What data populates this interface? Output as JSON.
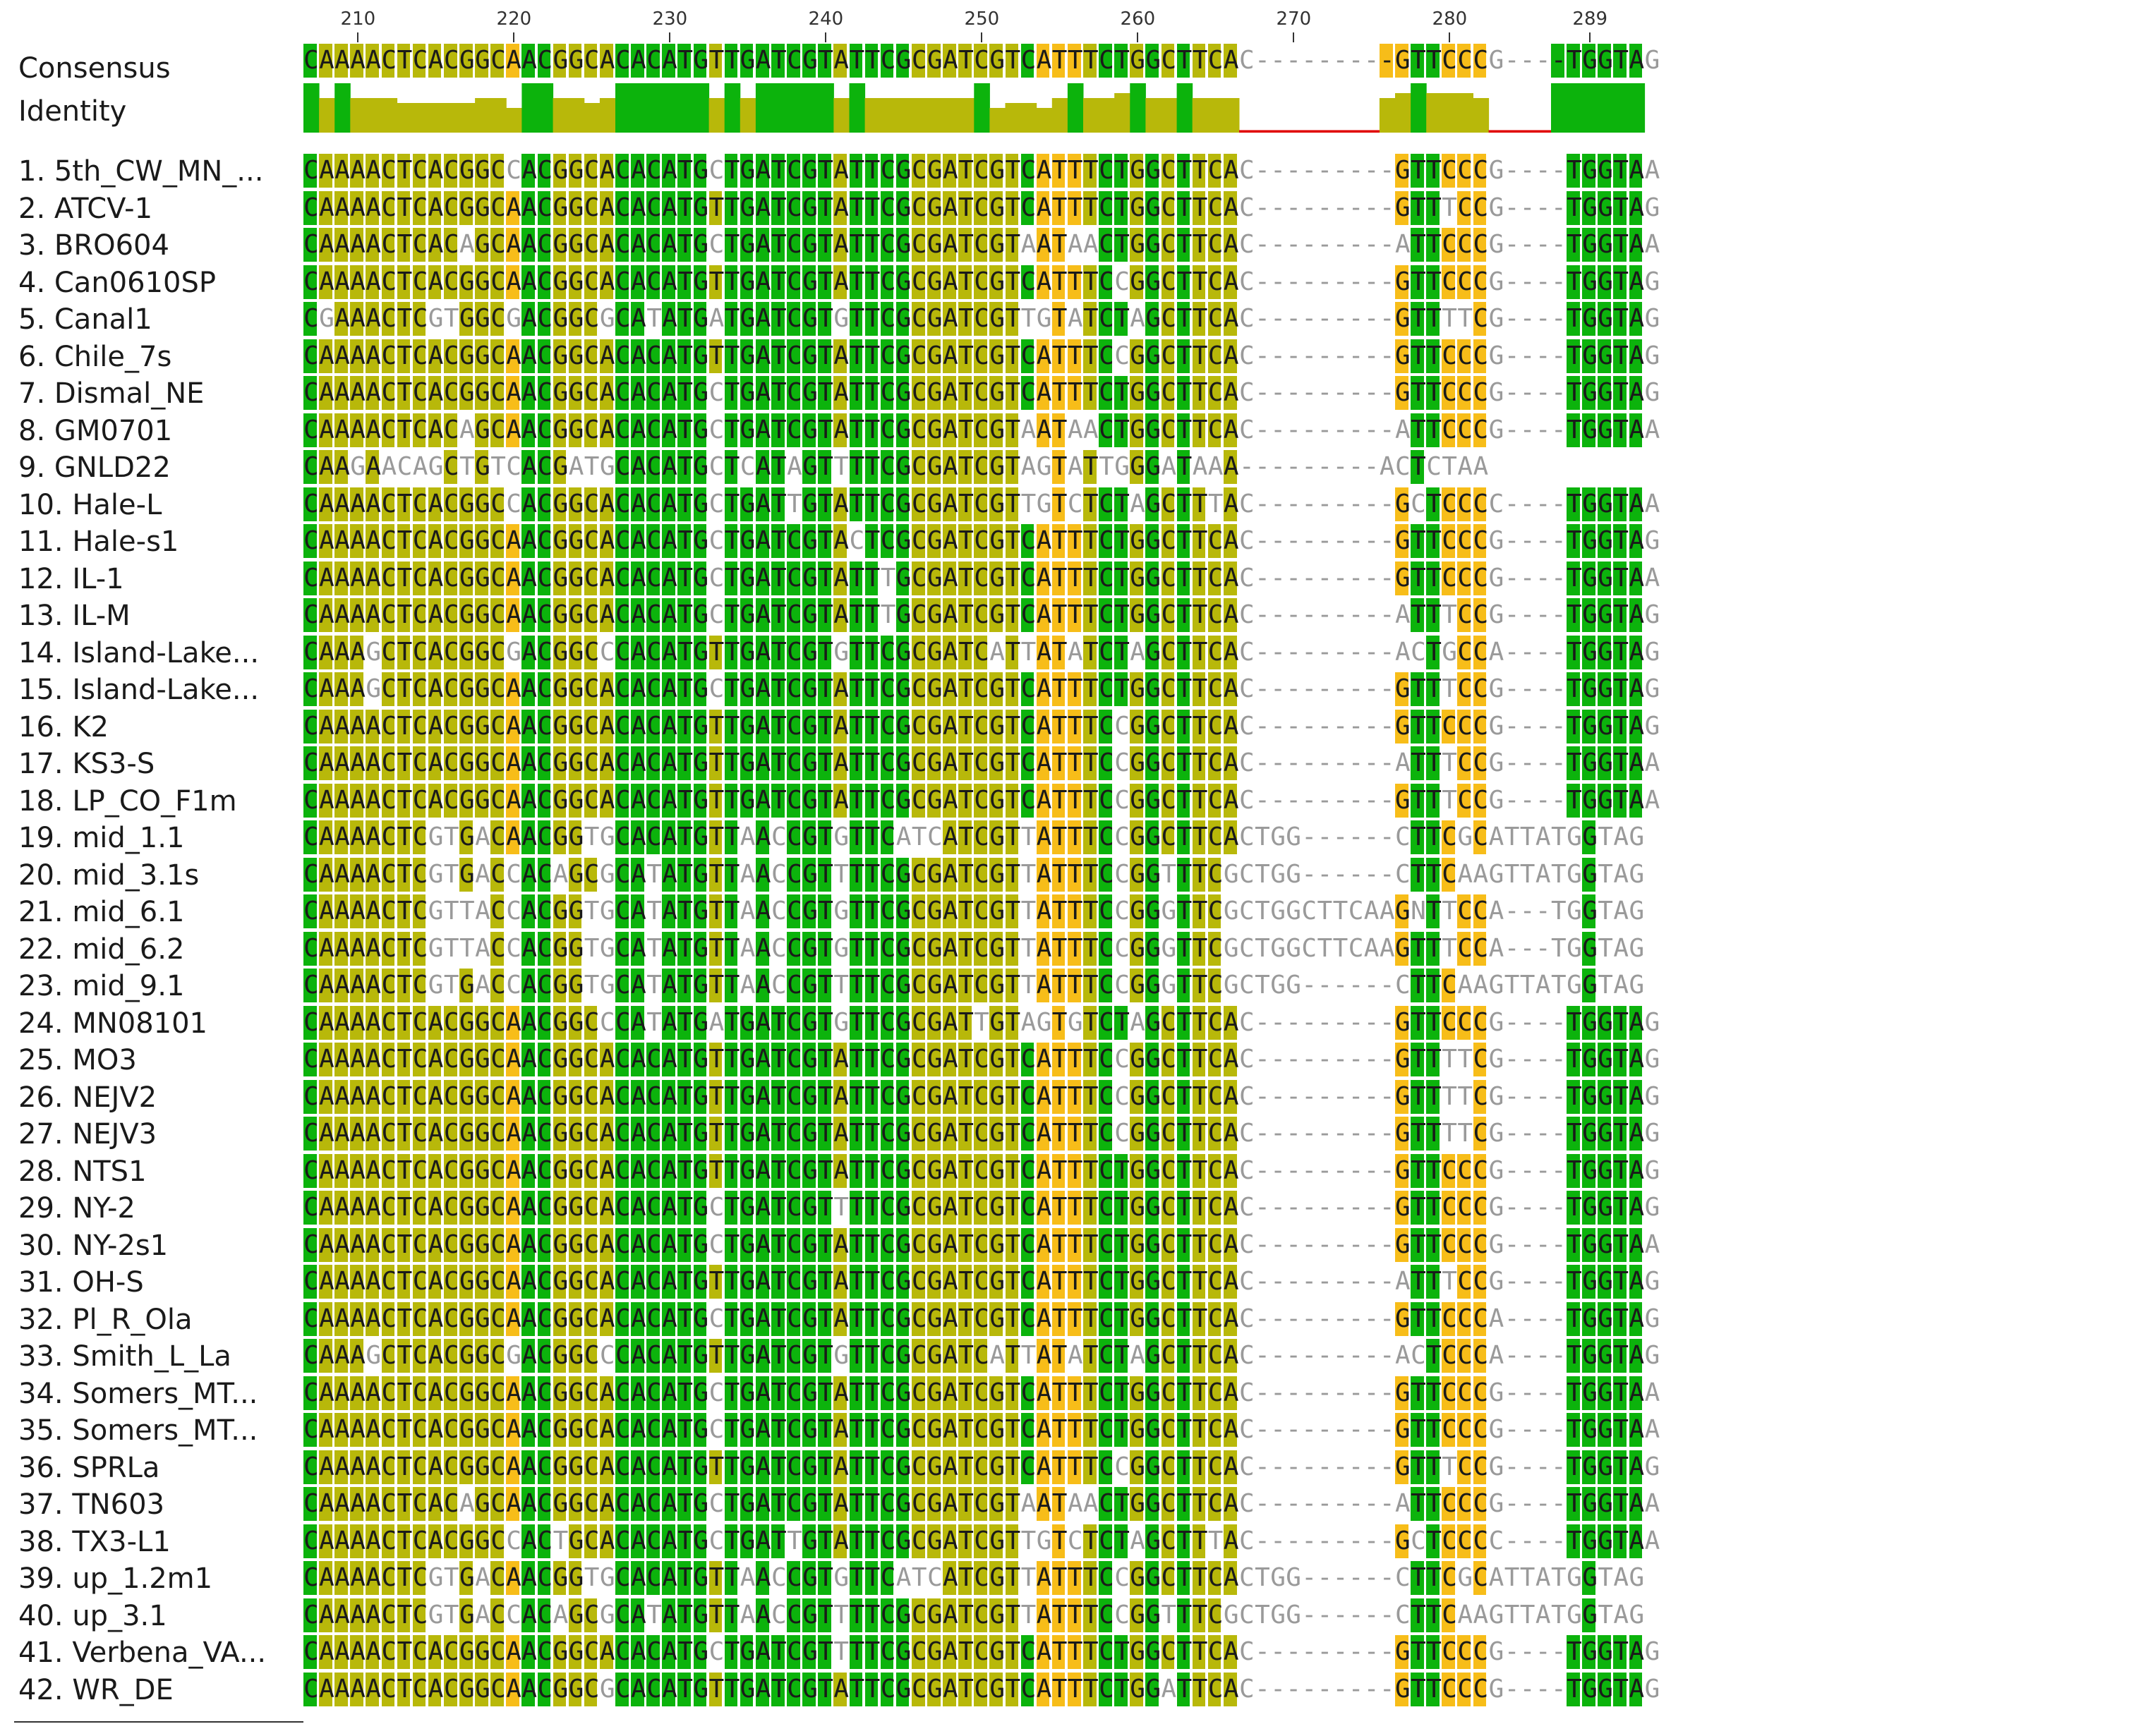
{
  "ruler": {
    "ticks": [
      "210",
      "220",
      "230",
      "240",
      "250",
      "260",
      "270",
      "280",
      "289"
    ],
    "start": 207,
    "end": 289
  },
  "labels": {
    "consensus": "Consensus",
    "identity": "Identity"
  },
  "colors": {
    "full": "#0cb30c",
    "high": "#b8b80a",
    "medium": "#f7bd19",
    "low": "#ffffff",
    "gapline": "#e00000"
  },
  "consensus": "CAAAACTCACGGCAACGGCACACATGTTGATCGTATTCGCGATCGTCATTTCTGGCTTCAC---------GTTCCCG----TGGTAG",
  "consensus_colors": "GYYYYYYYYYYYYOGGYYYYGGGGGGYGGGGGGGYGGGGYYYYYYYGOOOYGGYGYGYYY---------OOGGOOO----GGGGGG",
  "identity_levels": [
    1,
    0.7,
    1,
    0.7,
    0.7,
    0.7,
    0.6,
    0.6,
    0.6,
    0.6,
    0.6,
    0.7,
    0.7,
    0.5,
    1,
    1,
    0.7,
    0.7,
    0.6,
    0.7,
    1,
    1,
    1,
    1,
    1,
    1,
    0.7,
    1,
    0.7,
    1,
    1,
    1,
    1,
    1,
    0.7,
    1,
    0.7,
    0.7,
    0.7,
    0.7,
    0.7,
    0.7,
    0.7,
    1,
    0.5,
    0.6,
    0.6,
    0.5,
    0.7,
    1,
    0.7,
    0.7,
    0.8,
    1,
    0.7,
    0.7,
    1,
    0.7,
    0.7,
    0.7,
    0.05,
    0.05,
    0.05,
    0.05,
    0.05,
    0.05,
    0.05,
    0.05,
    0.05,
    0.7,
    0.8,
    1,
    0.8,
    0.8,
    0.8,
    0.7,
    0.05,
    0.05,
    0.05,
    0.05,
    1,
    1,
    1,
    1,
    1,
    1
  ],
  "sequences": [
    {
      "name": "1. 5th_CW_MN_...",
      "seq": "CAAAACTCACGGCCACGGCACACATGCTGATCGTATTCGCGATCGTCATTTCTGGCTTCAC---------GTTCCCG----TGGTAA"
    },
    {
      "name": "2. ATCV-1",
      "seq": "CAAAACTCACGGCAACGGCACACATGTTGATCGTATTCGCGATCGTCATTTCTGGCTTCAC---------GTTTCCG----TGGTAG"
    },
    {
      "name": "3. BRO604",
      "seq": "CAAAACTCACAGCAACGGCACACATGCTGATCGTATTCGCGATCGTAATAACTGGCTTCAC---------ATTCCCG----TGGTAA"
    },
    {
      "name": "4. Can0610SP",
      "seq": "CAAAACTCACGGCAACGGCACACATGTTGATCGTATTCGCGATCGTCATTTCCGGCTTCAC---------GTTCCCG----TGGTAG"
    },
    {
      "name": "5. Canal1",
      "seq": "CGAAACTCGTGGCGACGGCGCATATGATGATCGTGTTCGCGATCGTTGTATCTAGCTTCAC---------GTTTTCG----TGGTAG"
    },
    {
      "name": "6. Chile_7s",
      "seq": "CAAAACTCACGGCAACGGCACACATGTTGATCGTATTCGCGATCGTCATTTCCGGCTTCAC---------GTTCCCG----TGGTAG"
    },
    {
      "name": "7. Dismal_NE",
      "seq": "CAAAACTCACGGCAACGGCACACATGCTGATCGTATTCGCGATCGTCATTTCTGGCTTCAC---------GTTCCCG----TGGTAG"
    },
    {
      "name": "8. GM0701",
      "seq": "CAAAACTCACAGCAACGGCACACATGCTGATCGTATTCGCGATCGTAATAACTGGCTTCAC---------ATTCCCG----TGGTAA"
    },
    {
      "name": "9. GNLD22",
      "seq": "CAAGAACAGCTGTCACGATGCACATGCTCATAGTTTTCGCGATCGTAGTATTGGGATAAA---------ACTCTAA           "
    },
    {
      "name": "10. Hale-L",
      "seq": "CAAAACTCACGGCCACGGCACACATGCTGATTGTATTCGCGATCGTTGTCTCTAGCTTTAC---------GCTCCCC----TGGTAA"
    },
    {
      "name": "11. Hale-s1",
      "seq": "CAAAACTCACGGCAACGGCACACATGCTGATCGTACTCGCGATCGTCATTTCTGGCTTCAC---------GTTCCCG----TGGTAG"
    },
    {
      "name": "12. IL-1",
      "seq": "CAAAACTCACGGCAACGGCACACATGCTGATCGTATTTGCGATCGTCATTTCTGGCTTCAC---------GTTCCCG----TGGTAA"
    },
    {
      "name": "13. IL-M",
      "seq": "CAAAACTCACGGCAACGGCACACATGCTGATCGTATTTGCGATCGTCATTTCTGGCTTCAC---------ATTTCCG----TGGTAG"
    },
    {
      "name": "14. Island-Lake...",
      "seq": "CAAAGCTCACGGCGACGGCCCACATGTTGATCGTGTTCGCGATCATTATATCTAGCTTCAC---------ACTGCCA----TGGTAG"
    },
    {
      "name": "15. Island-Lake...",
      "seq": "CAAAGCTCACGGCAACGGCACACATGCTGATCGTATTCGCGATCGTCATTTCTGGCTTCAC---------GTTTCCG----TGGTAG"
    },
    {
      "name": "16. K2",
      "seq": "CAAAACTCACGGCAACGGCACACATGTTGATCGTATTCGCGATCGTCATTTCCGGCTTCAC---------GTTCCCG----TGGTAG"
    },
    {
      "name": "17. KS3-S",
      "seq": "CAAAACTCACGGCAACGGCACACATGTTGATCGTATTCGCGATCGTCATTTCCGGCTTCAC---------ATTTCCG----TGGTAA"
    },
    {
      "name": "18. LP_CO_F1m",
      "seq": "CAAAACTCACGGCAACGGCACACATGTTGATCGTATTCGCGATCGTCATTTCCGGCTTCAC---------GTTTCCG----TGGTAA"
    },
    {
      "name": "19. mid_1.1",
      "seq": "CAAAACTCGTGACAACGGTGCACATGTTAACCGTGTTCATCATCGTTATTTCCGGCTTCACTGG------CTTCGCATTATGGTAG"
    },
    {
      "name": "20. mid_3.1s",
      "seq": "CAAAACTCGTGACCACAGCGCATATGTTAACCGTTTTCGCGATCGTTATTTCCGGTTTCGCTGG------CTTCAAGTTATGGTAG"
    },
    {
      "name": "21. mid_6.1",
      "seq": "CAAAACTCGTTACCACGGTGCATATGTTAACCGTGTTCGCGATCGTTATTTCCGGGTTCGCTGGCTTCAAGNTTCCA---TGGTAG"
    },
    {
      "name": "22. mid_6.2",
      "seq": "CAAAACTCGTTACCACGGTGCATATGTTAACCGTGTTCGCGATCGTTATTTCCGGGTTCGCTGGCTTCAAGTTTCCA---TGGTAG"
    },
    {
      "name": "23. mid_9.1",
      "seq": "CAAAACTCGTGACCACGGTGCATATGTTAACCGTTTTCGCGATCGTTATTTCCGGGTTCGCTGG------CTTCAAGTTATGGTAG"
    },
    {
      "name": "24. MN08101",
      "seq": "CAAAACTCACGGCAACGGCCCATATGATGATCGTGTTCGCGATTGTAGTGTCTAGCTTCAC---------GTTCCCG----TGGTAG"
    },
    {
      "name": "25. MO3",
      "seq": "CAAAACTCACGGCAACGGCACACATGTTGATCGTATTCGCGATCGTCATTTCCGGCTTCAC---------GTTTTCG----TGGTAG"
    },
    {
      "name": "26. NEJV2",
      "seq": "CAAAACTCACGGCAACGGCACACATGTTGATCGTATTCGCGATCGTCATTTCCGGCTTCAC---------GTTTTCG----TGGTAG"
    },
    {
      "name": "27. NEJV3",
      "seq": "CAAAACTCACGGCAACGGCACACATGTTGATCGTATTCGCGATCGTCATTTCCGGCTTCAC---------GTTTTCG----TGGTAG"
    },
    {
      "name": "28. NTS1",
      "seq": "CAAAACTCACGGCAACGGCACACATGTTGATCGTATTCGCGATCGTCATTTCTGGCTTCAC---------GTTCCCG----TGGTAG"
    },
    {
      "name": "29. NY-2",
      "seq": "CAAAACTCACGGCAACGGCACACATGCTGATCGTTTTCGCGATCGTCATTTCTGGCTTCAC---------GTTCCCG----TGGTAG"
    },
    {
      "name": "30. NY-2s1",
      "seq": "CAAAACTCACGGCAACGGCACACATGCTGATCGTATTCGCGATCGTCATTTCTGGCTTCAC---------GTTCCCG----TGGTAA"
    },
    {
      "name": "31. OH-S",
      "seq": "CAAAACTCACGGCAACGGCACACATGTTGATCGTATTCGCGATCGTCATTTCTGGCTTCAC---------ATTTCCG----TGGTAG"
    },
    {
      "name": "32. Pl_R_Ola",
      "seq": "CAAAACTCACGGCAACGGCACACATGCTGATCGTATTCGCGATCGTCATTTCTGGCTTCAC---------GTTCCCA----TGGTAG"
    },
    {
      "name": "33. Smith_L_La",
      "seq": "CAAAGCTCACGGCGACGGCCCACATGTTGATCGTGTTCGCGATCATTATATCTAGCTTCAC---------ACTCCCA----TGGTAG"
    },
    {
      "name": "34. Somers_MT...",
      "seq": "CAAAACTCACGGCAACGGCACACATGCTGATCGTATTCGCGATCGTCATTTCTGGCTTCAC---------GTTCCCG----TGGTAA"
    },
    {
      "name": "35. Somers_MT...",
      "seq": "CAAAACTCACGGCAACGGCACACATGCTGATCGTATTCGCGATCGTCATTTCTGGCTTCAC---------GTTCCCG----TGGTAA"
    },
    {
      "name": "36. SPRLa",
      "seq": "CAAAACTCACGGCAACGGCACACATGTTGATCGTATTCGCGATCGTCATTTCCGGCTTCAC---------GTTTCCG----TGGTAG"
    },
    {
      "name": "37. TN603",
      "seq": "CAAAACTCACAGCAACGGCACACATGCTGATCGTATTCGCGATCGTAATAACTGGCTTCAC---------ATTCCCG----TGGTAA"
    },
    {
      "name": "38. TX3-L1",
      "seq": "CAAAACTCACGGCCACTGCACACATGCTGATTGTATTCGCGATCGTTGTCTCTAGCTTTAC---------GCTCCCC----TGGTAA"
    },
    {
      "name": "39. up_1.2m1",
      "seq": "CAAAACTCGTGACAACGGTGCACATGTTAACCGTGTTCATCATCGTTATTTCCGGCTTCACTGG------CTTCGCATTATGGTAG"
    },
    {
      "name": "40. up_3.1",
      "seq": "CAAAACTCGTGACCACAGCGCATATGTTAACCGTTTTCGCGATCGTTATTTCCGGTTTCGCTGG------CTTCAAGTTATGGTAG"
    },
    {
      "name": "41. Verbena_VA...",
      "seq": "CAAAACTCACGGCAACGGCACACATGCTGATCGTTTTCGCGATCGTCATTTCTGGCTTCAC---------GTTCCCG----TGGTAG"
    },
    {
      "name": "42. WR_DE",
      "seq": "CAAAACTCACGGCAACGGCGCACATGTTGATCGTATTCGCGATCGTCATTTCTGGATTCAC---------GTTCCCG----TGGTAG"
    }
  ]
}
